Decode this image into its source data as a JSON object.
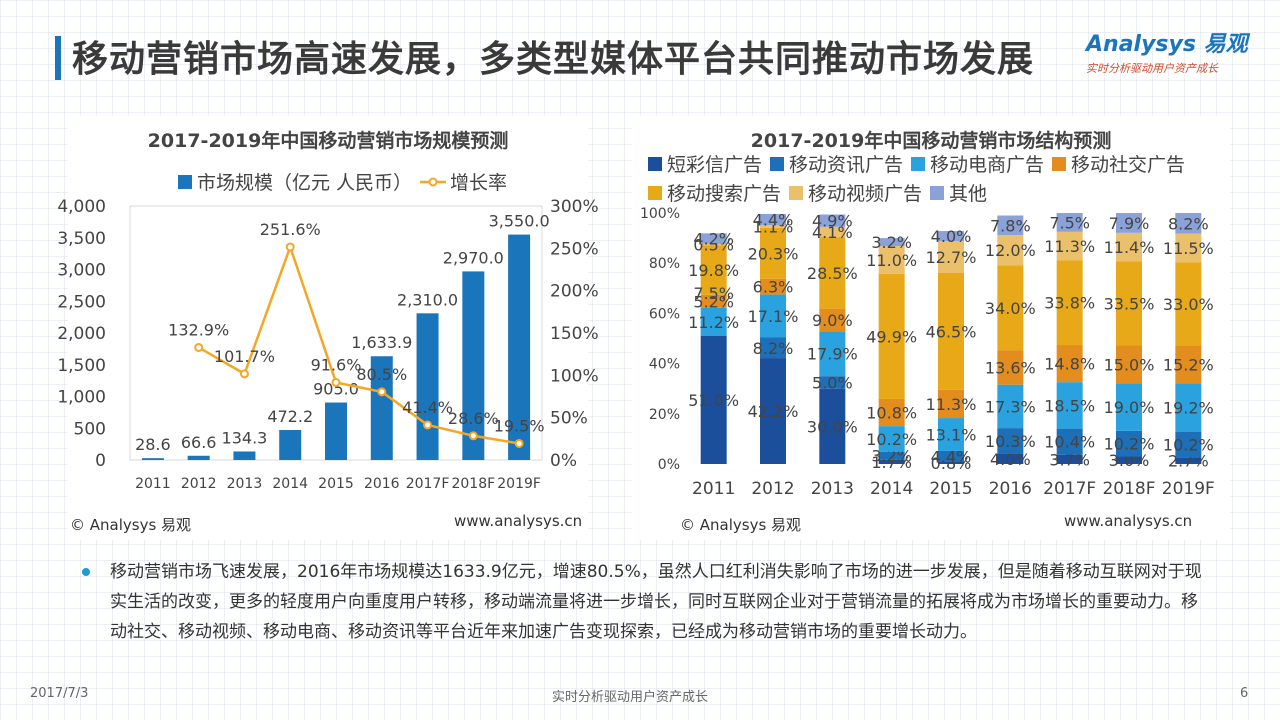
{
  "header": {
    "title": "移动营销市场高速发展，多类型媒体平台共同推动市场发展",
    "logo_main": "Analysys 易观",
    "logo_sub": "实时分析驱动用户资产成长"
  },
  "chart_data": [
    {
      "type": "bar",
      "title": "2017-2019年中国移动营销市场规模预测",
      "categories": [
        "2011",
        "2012",
        "2013",
        "2014",
        "2015",
        "2016",
        "2017F",
        "2018F",
        "2019F"
      ],
      "series": [
        {
          "name": "市场规模（亿元 人民币）",
          "kind": "bar",
          "axis": "left",
          "values": [
            28.6,
            66.6,
            134.3,
            472.2,
            905.0,
            1633.9,
            2310.0,
            2970.0,
            3550.0
          ],
          "labels": [
            "28.6",
            "66.6",
            "134.3",
            "472.2",
            "905.0",
            "1,633.9",
            "2,310.0",
            "2,970.0",
            "3,550.0"
          ]
        },
        {
          "name": "增长率",
          "kind": "line",
          "axis": "right",
          "values": [
            null,
            132.9,
            101.7,
            251.6,
            91.6,
            80.5,
            41.4,
            28.6,
            19.5
          ],
          "labels": [
            "",
            "132.9%",
            "101.7%",
            "251.6%",
            "91.6%",
            "80.5%",
            "41.4%",
            "28.6%",
            "19.5%"
          ]
        }
      ],
      "ylim_left": [
        0,
        4000
      ],
      "yticks_left": [
        "0",
        "500",
        "1,000",
        "1,500",
        "2,000",
        "2,500",
        "3,000",
        "3,500",
        "4,000"
      ],
      "ylim_right": [
        0,
        300
      ],
      "yticks_right": [
        "0%",
        "50%",
        "100%",
        "150%",
        "200%",
        "250%",
        "300%"
      ],
      "colors": {
        "bar": "#1b75bb",
        "line": "#f5a623"
      },
      "source": "© Analysys 易观",
      "site": "www.analysys.cn"
    },
    {
      "type": "stacked_bar",
      "title": "2017-2019年中国移动营销市场结构预测",
      "categories": [
        "2011",
        "2012",
        "2013",
        "2014",
        "2015",
        "2016",
        "2017F",
        "2018F",
        "2019F"
      ],
      "ylim": [
        0,
        100
      ],
      "yticks": [
        "0%",
        "20%",
        "40%",
        "60%",
        "80%",
        "100%"
      ],
      "series": [
        {
          "name": "短彩信广告",
          "color": "#1b4f9c",
          "values": [
            51.0,
            42.2,
            30.0,
            1.7,
            0.8,
            4.0,
            3.7,
            3.0,
            2.7
          ],
          "labels": [
            "51.0%",
            "42.2%",
            "30.0%",
            "1.7%",
            "0.8%",
            "4.0%",
            "3.7%",
            "3.0%",
            "2.7%"
          ]
        },
        {
          "name": "移动资讯广告",
          "color": "#1d6fb8",
          "values": [
            0,
            8.2,
            5.0,
            3.2,
            4.4,
            10.3,
            10.4,
            10.2,
            10.2
          ],
          "labels": [
            "",
            "8.2%",
            "5.0%",
            "3.2%",
            "4.4%",
            "10.3%",
            "10.4%",
            "10.2%",
            "10.2%"
          ]
        },
        {
          "name": "移动电商广告",
          "color": "#2aa2e0",
          "values": [
            11.2,
            17.1,
            17.9,
            10.2,
            13.1,
            17.3,
            18.5,
            19.0,
            19.2
          ],
          "labels": [
            "11.2%",
            "17.1%",
            "17.9%",
            "10.2%",
            "13.1%",
            "17.3%",
            "18.5%",
            "19.0%",
            "19.2%"
          ]
        },
        {
          "name": "移动社交广告",
          "color": "#e38d1e",
          "values": [
            5.2,
            6.3,
            9.0,
            10.8,
            11.3,
            13.6,
            14.8,
            15.0,
            15.2
          ],
          "labels": [
            "5.2%",
            "6.3%",
            "9.0%",
            "10.8%",
            "11.3%",
            "13.6%",
            "14.8%",
            "15.0%",
            "15.2%"
          ]
        },
        {
          "name": "移动搜索广告",
          "color": "#e8a918",
          "values": [
            19.8,
            20.3,
            28.5,
            49.9,
            46.5,
            34.0,
            33.8,
            33.5,
            33.0
          ],
          "labels": [
            "19.8%",
            "20.3%",
            "28.5%",
            "49.9%",
            "46.5%",
            "34.0%",
            "33.8%",
            "33.5%",
            "33.0%"
          ]
        },
        {
          "name": "移动视频广告",
          "color": "#ebc06a",
          "values": [
            0.5,
            1.1,
            4.1,
            11.0,
            12.7,
            12.0,
            11.3,
            11.4,
            11.5
          ],
          "labels": [
            "0.5%",
            "1.1%",
            "4.1%",
            "11.0%",
            "12.7%",
            "12.0%",
            "11.3%",
            "11.4%",
            "11.5%"
          ]
        },
        {
          "name": "其他",
          "color": "#8aa2d8",
          "values": [
            4.2,
            4.4,
            4.9,
            3.2,
            4.0,
            7.8,
            7.5,
            7.9,
            8.2
          ],
          "labels": [
            "4.2%",
            "4.4%",
            "4.9%",
            "3.2%",
            "4.0%",
            "7.8%",
            "7.5%",
            "7.9%",
            "8.2%"
          ]
        }
      ],
      "extra_label": {
        "category": "2011",
        "text": "7.5%"
      },
      "source": "© Analysys 易观",
      "site": "www.analysys.cn"
    }
  ],
  "summary": "移动营销市场飞速发展，2016年市场规模达1633.9亿元，增速80.5%，虽然人口红利消失影响了市场的进一步发展，但是随着移动互联网对于现实生活的改变，更多的轻度用户向重度用户转移，移动端流量将进一步增长，同时互联网企业对于营销流量的拓展将成为市场增长的重要动力。移动社交、移动视频、移动电商、移动资讯等平台近年来加速广告变现探索，已经成为移动营销市场的重要增长动力。",
  "footer": {
    "date": "2017/7/3",
    "slogan": "实时分析驱动用户资产成长",
    "page": "6"
  }
}
